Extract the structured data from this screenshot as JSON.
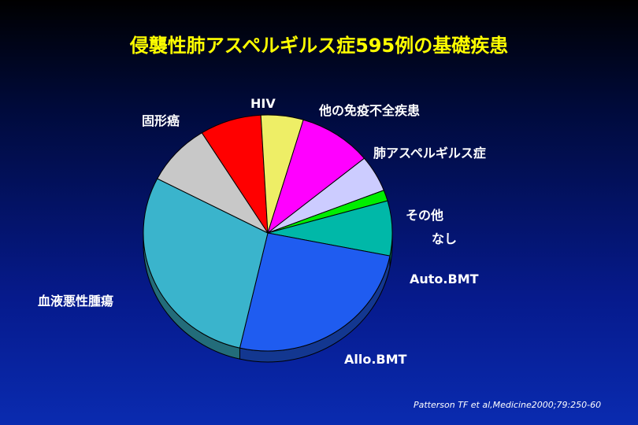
{
  "title": "侵襲性肺アスペルギルス症595例の基礎疾患",
  "citation": "Patterson TF et al,Medicine2000;79:250-60",
  "chart_data": {
    "type": "pie",
    "title": "侵襲性肺アスペルギルス症595例の基礎疾患",
    "unit": "percent (estimated)",
    "categories": [
      "HIV",
      "他の免疫不全疾患",
      "肺アスペルギルス症",
      "その他",
      "なし",
      "Auto.BMT",
      "Allo.BMT",
      "血液悪性腫瘍",
      "固形癌"
    ],
    "values": [
      8,
      5.5,
      9.5,
      5,
      1.5,
      7.5,
      25.5,
      29,
      8.5
    ],
    "colors": [
      "#ff0000",
      "#eeee66",
      "#ff00ff",
      "#ccccff",
      "#00ee00",
      "#00b8a8",
      "#1f5cf0",
      "#3ab4cc",
      "#c8c8c8"
    ]
  }
}
